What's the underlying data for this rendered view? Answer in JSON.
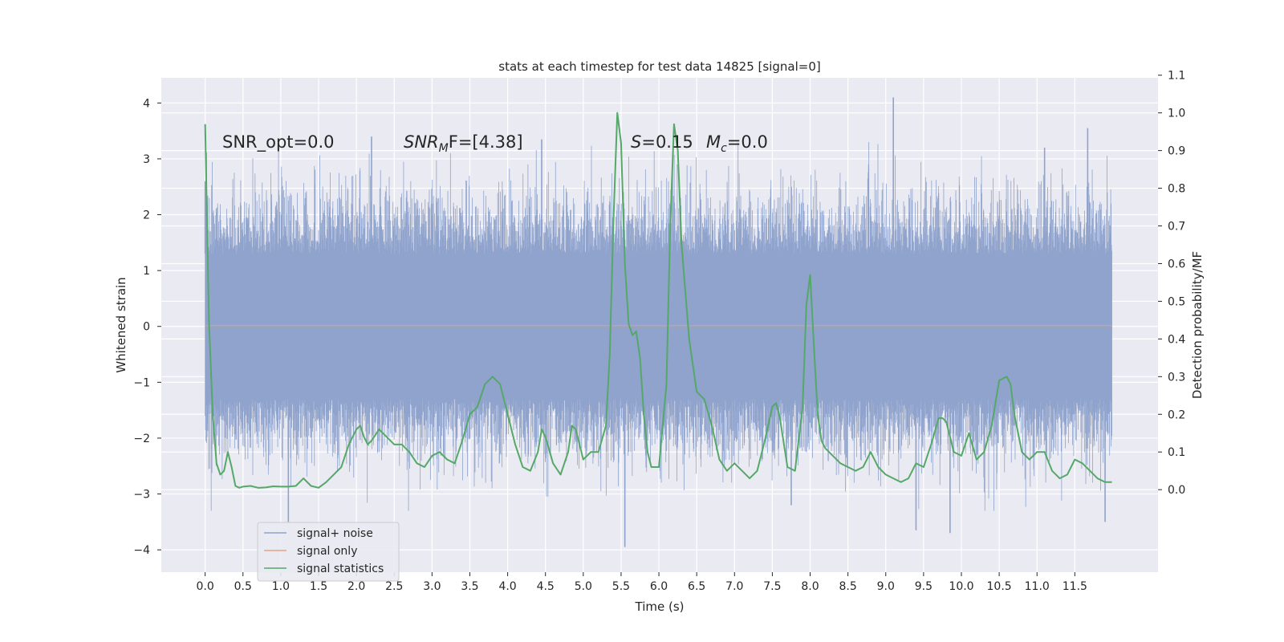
{
  "chart_data": {
    "type": "line",
    "title": "stats at each timestep for test data 14825 [signal=0]",
    "xlabel": "Time (s)",
    "ylabel": "Whitened strain",
    "y2label": "Detection probability/MF",
    "xlim": [
      -0.58,
      12.6
    ],
    "ylim": [
      -4.4,
      4.45
    ],
    "y2lim": [
      -0.219,
      1.093
    ],
    "xticks": [
      0.0,
      0.5,
      1.0,
      1.5,
      2.0,
      2.5,
      3.0,
      3.5,
      4.0,
      4.5,
      5.0,
      5.5,
      6.0,
      6.5,
      7.0,
      7.5,
      8.0,
      8.5,
      9.0,
      9.5,
      10.0,
      10.5,
      11.0,
      11.5
    ],
    "xtick_labels": [
      "0.0",
      "0.5",
      "1.0",
      "1.5",
      "2.0",
      "2.5",
      "3.0",
      "3.5",
      "4.0",
      "4.5",
      "5.0",
      "5.5",
      "6.0",
      "6.5",
      "7.0",
      "7.5",
      "8.0",
      "8.5",
      "9.0",
      "9.5",
      "10.0",
      "10.5",
      "11.0",
      "11.5"
    ],
    "yticks": [
      -4,
      -3,
      -2,
      -1,
      0,
      1,
      2,
      3,
      4
    ],
    "ytick_labels": [
      "−4",
      "−3",
      "−2",
      "−1",
      "0",
      "1",
      "2",
      "3",
      "4"
    ],
    "y2ticks": [
      0.0,
      0.1,
      0.2,
      0.3,
      0.4,
      0.5,
      0.6,
      0.7,
      0.8,
      0.9,
      1.0,
      1.1
    ],
    "y2tick_labels": [
      "0.0",
      "0.1",
      "0.2",
      "0.3",
      "0.4",
      "0.5",
      "0.6",
      "0.7",
      "0.8",
      "0.9",
      "1.0",
      "1.1"
    ],
    "grid": true,
    "legend_position": "lower-left",
    "annotations": {
      "snr_opt": "SNR_opt=0.0",
      "snr_mf_name": "SNR",
      "snr_mf_sub": "M",
      "snr_mf_rest": "F=[4.38]",
      "s_name": "S",
      "s_rest": "=0.15",
      "mc_name": "M",
      "mc_sub": "c",
      "mc_rest": "=0.0"
    },
    "series": [
      {
        "name": "signal+ noise",
        "color": "#8fa3cc",
        "axis": "left",
        "x_range": [
          0.0,
          11.99
        ],
        "core_band": [
          -1.3,
          1.3
        ],
        "max_value": 4.1,
        "min_value": -3.95,
        "extreme_points": [
          {
            "x": 9.1,
            "y": 4.1
          },
          {
            "x": 2.2,
            "y": 3.4
          },
          {
            "x": 4.45,
            "y": 3.35
          },
          {
            "x": 11.67,
            "y": 3.55
          },
          {
            "x": 11.1,
            "y": 3.2
          },
          {
            "x": 5.55,
            "y": -3.95
          },
          {
            "x": 1.1,
            "y": -3.5
          },
          {
            "x": 9.85,
            "y": -3.7
          },
          {
            "x": 9.4,
            "y": -3.65
          },
          {
            "x": 11.9,
            "y": -3.5
          },
          {
            "x": 7.75,
            "y": -3.2
          },
          {
            "x": 0.0,
            "y": 2.6
          }
        ]
      },
      {
        "name": "signal only",
        "color": "#e1a388",
        "axis": "left",
        "x": [
          0.0,
          11.99
        ],
        "y": [
          0.0,
          0.0
        ]
      },
      {
        "name": "signal statistics",
        "color": "#55a868",
        "axis": "right",
        "x": [
          0.0,
          0.05,
          0.1,
          0.15,
          0.2,
          0.25,
          0.3,
          0.35,
          0.4,
          0.45,
          0.5,
          0.6,
          0.7,
          0.8,
          0.9,
          1.0,
          1.1,
          1.2,
          1.3,
          1.4,
          1.5,
          1.6,
          1.7,
          1.8,
          1.9,
          2.0,
          2.05,
          2.1,
          2.15,
          2.2,
          2.3,
          2.4,
          2.5,
          2.6,
          2.7,
          2.8,
          2.9,
          3.0,
          3.1,
          3.2,
          3.3,
          3.4,
          3.5,
          3.6,
          3.7,
          3.8,
          3.9,
          4.0,
          4.1,
          4.2,
          4.3,
          4.4,
          4.45,
          4.5,
          4.6,
          4.7,
          4.8,
          4.85,
          4.9,
          5.0,
          5.1,
          5.2,
          5.3,
          5.35,
          5.4,
          5.45,
          5.5,
          5.55,
          5.6,
          5.65,
          5.7,
          5.75,
          5.8,
          5.85,
          5.9,
          6.0,
          6.1,
          6.15,
          6.2,
          6.25,
          6.3,
          6.4,
          6.5,
          6.55,
          6.6,
          6.7,
          6.8,
          6.9,
          7.0,
          7.1,
          7.2,
          7.3,
          7.4,
          7.5,
          7.55,
          7.6,
          7.7,
          7.8,
          7.9,
          7.95,
          8.0,
          8.05,
          8.1,
          8.15,
          8.2,
          8.3,
          8.4,
          8.5,
          8.6,
          8.7,
          8.8,
          8.9,
          9.0,
          9.1,
          9.2,
          9.3,
          9.4,
          9.5,
          9.6,
          9.7,
          9.75,
          9.8,
          9.9,
          10.0,
          10.1,
          10.2,
          10.3,
          10.4,
          10.5,
          10.6,
          10.65,
          10.7,
          10.8,
          10.9,
          11.0,
          11.1,
          11.2,
          11.3,
          11.4,
          11.5,
          11.6,
          11.7,
          11.8,
          11.9,
          11.99
        ],
        "y": [
          0.97,
          0.45,
          0.2,
          0.07,
          0.04,
          0.05,
          0.1,
          0.06,
          0.01,
          0.005,
          0.008,
          0.01,
          0.005,
          0.006,
          0.009,
          0.008,
          0.008,
          0.01,
          0.03,
          0.01,
          0.005,
          0.02,
          0.04,
          0.06,
          0.12,
          0.16,
          0.17,
          0.14,
          0.12,
          0.13,
          0.16,
          0.14,
          0.12,
          0.12,
          0.1,
          0.07,
          0.06,
          0.09,
          0.1,
          0.08,
          0.07,
          0.13,
          0.2,
          0.22,
          0.28,
          0.3,
          0.28,
          0.2,
          0.12,
          0.06,
          0.05,
          0.1,
          0.16,
          0.14,
          0.07,
          0.04,
          0.1,
          0.17,
          0.16,
          0.08,
          0.1,
          0.1,
          0.17,
          0.36,
          0.72,
          1.0,
          0.92,
          0.6,
          0.44,
          0.41,
          0.42,
          0.35,
          0.2,
          0.1,
          0.06,
          0.06,
          0.28,
          0.7,
          0.97,
          0.9,
          0.65,
          0.4,
          0.26,
          0.25,
          0.24,
          0.17,
          0.08,
          0.05,
          0.07,
          0.05,
          0.03,
          0.05,
          0.13,
          0.22,
          0.23,
          0.19,
          0.06,
          0.05,
          0.22,
          0.49,
          0.57,
          0.38,
          0.2,
          0.13,
          0.11,
          0.09,
          0.07,
          0.06,
          0.05,
          0.06,
          0.1,
          0.06,
          0.04,
          0.03,
          0.02,
          0.03,
          0.07,
          0.06,
          0.12,
          0.19,
          0.19,
          0.18,
          0.1,
          0.09,
          0.15,
          0.08,
          0.1,
          0.17,
          0.29,
          0.3,
          0.28,
          0.2,
          0.1,
          0.08,
          0.1,
          0.1,
          0.05,
          0.03,
          0.04,
          0.08,
          0.07,
          0.05,
          0.03,
          0.02,
          0.02
        ]
      }
    ]
  }
}
